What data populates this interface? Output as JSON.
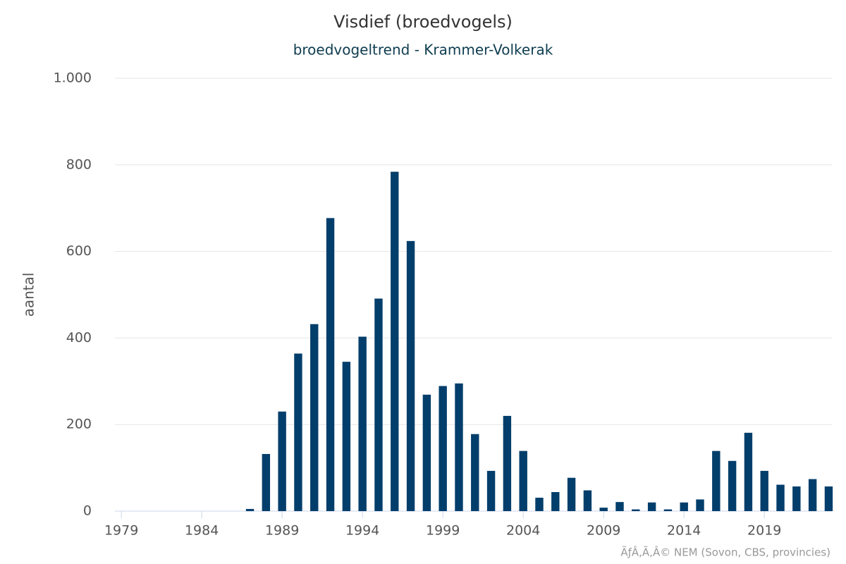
{
  "chart_data": {
    "type": "bar",
    "title": "Visdief (broedvogels)",
    "subtitle": "broedvogeltrend - Krammer-Volkerak",
    "y_label": "aantal",
    "credits": "ÃƒÂ,Ã,Â© NEM (Sovon, CBS, provincies)",
    "x": [
      1979,
      1980,
      1981,
      1982,
      1983,
      1984,
      1985,
      1986,
      1987,
      1988,
      1989,
      1990,
      1991,
      1992,
      1993,
      1994,
      1995,
      1996,
      1997,
      1998,
      1999,
      2000,
      2001,
      2002,
      2003,
      2004,
      2005,
      2006,
      2007,
      2008,
      2009,
      2010,
      2011,
      2012,
      2013,
      2014,
      2015,
      2016,
      2017,
      2018,
      2019,
      2020,
      2021,
      2022,
      2023
    ],
    "values": [
      0,
      0,
      0,
      0,
      0,
      0,
      0,
      0,
      5,
      132,
      230,
      364,
      432,
      677,
      345,
      403,
      491,
      784,
      624,
      269,
      289,
      295,
      178,
      93,
      220,
      139,
      31,
      44,
      77,
      48,
      8,
      21,
      4,
      20,
      4,
      20,
      27,
      139,
      116,
      181,
      93,
      61,
      57,
      74,
      57
    ],
    "color": "#023e6b",
    "xlim": [
      1978.6,
      2023.2
    ],
    "xticks": [
      1979,
      1984,
      1989,
      1994,
      1999,
      2004,
      2009,
      2014,
      2019
    ],
    "ylim": [
      0,
      1000
    ],
    "yticks": [
      0,
      200,
      400,
      600,
      800,
      {
        "value": 1000,
        "label": "1.000"
      }
    ],
    "grid": true
  }
}
